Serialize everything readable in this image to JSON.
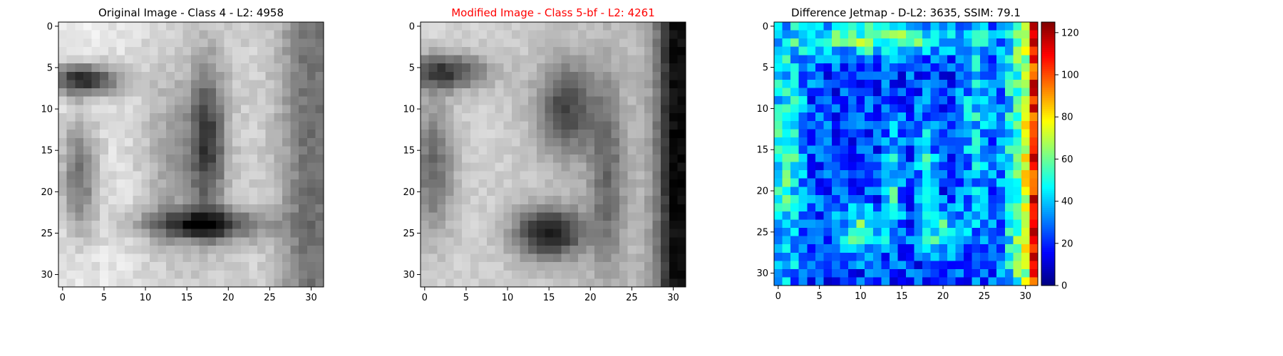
{
  "chart_data": [
    {
      "type": "heatmap",
      "title": "Original Image - Class 4 - L2: 4958",
      "title_color": "#000000",
      "colormap": "gray",
      "value_range": [
        0,
        255
      ],
      "grid_size": [
        32,
        32
      ],
      "xlim": [
        -0.5,
        31.5
      ],
      "ylim": [
        31.5,
        -0.5
      ],
      "xticks": [
        0,
        5,
        10,
        15,
        20,
        25,
        30
      ],
      "yticks": [
        0,
        5,
        10,
        15,
        20,
        25,
        30
      ],
      "grid": false,
      "description_of_content": "Grayscale digit-like image with a vertical dark stroke near columns 16-18 and a horizontal dark stroke near row 24; dark band on left near rows 6-8"
    },
    {
      "type": "heatmap",
      "title": "Modified Image - Class 5-bf - L2: 4261",
      "title_color": "#ff0000",
      "colormap": "gray",
      "value_range": [
        0,
        255
      ],
      "grid_size": [
        32,
        32
      ],
      "xlim": [
        -0.5,
        31.5
      ],
      "ylim": [
        31.5,
        -0.5
      ],
      "xticks": [
        0,
        5,
        10,
        15,
        20,
        25,
        30
      ],
      "yticks": [
        0,
        5,
        10,
        15,
        20,
        25,
        30
      ],
      "grid": false
    },
    {
      "type": "heatmap",
      "title": "Difference Jetmap - D-L2: 3635, SSIM: 79.1",
      "title_color": "#000000",
      "colormap": "jet",
      "value_range": [
        0,
        125
      ],
      "grid_size": [
        32,
        32
      ],
      "xlim": [
        -0.5,
        31.5
      ],
      "ylim": [
        31.5,
        -0.5
      ],
      "xticks": [
        0,
        5,
        10,
        15,
        20,
        25,
        30
      ],
      "yticks": [
        0,
        5,
        10,
        15,
        20,
        25,
        30
      ],
      "grid": false,
      "colorbar": {
        "ticks": [
          0,
          20,
          40,
          60,
          80,
          100,
          120
        ],
        "range": [
          0,
          125
        ],
        "placement": "right"
      }
    }
  ]
}
